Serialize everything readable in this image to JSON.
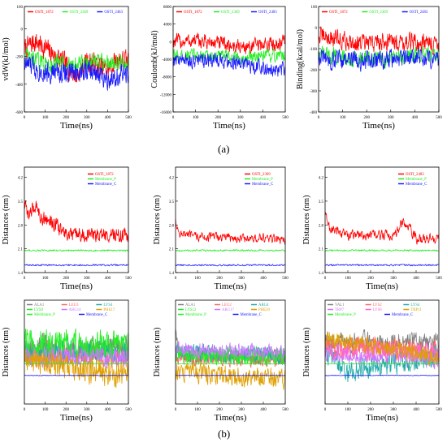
{
  "captions": {
    "a": "(a)",
    "b": "(b)"
  },
  "colors": {
    "red": "#ff0000",
    "green": "#22ee22",
    "blue": "#1a1aff",
    "gray": "#7f7f7f",
    "orange": "#e0a000",
    "violet": "#cc77ff",
    "lightred": "#ff6666",
    "teal": "#22aaaa",
    "pink": "#ff66cc"
  },
  "chart_data": [
    {
      "type": "line",
      "id": "a1",
      "ylabel": "vdW(kJ/mol)",
      "xlabel": "Time(ns)",
      "xlim": [
        0,
        500
      ],
      "ylim": [
        -600,
        160
      ],
      "xticks": [
        "0",
        "100",
        "200",
        "300",
        "400",
        "500"
      ],
      "yticks": [
        "-600",
        "-400",
        "-200",
        "0",
        "160"
      ],
      "legend": [
        "OSTI_1872",
        "OSTI_2369",
        "OSTI_2483"
      ],
      "series": [
        {
          "name": "OSTI_1872",
          "color": "red",
          "mean": -220,
          "noise": 70,
          "x": [
            0,
            50,
            100,
            200,
            250,
            300,
            400,
            450,
            500
          ],
          "y": [
            -150,
            -90,
            -140,
            -260,
            -340,
            -230,
            -300,
            -220,
            -240
          ]
        },
        {
          "name": "OSTI_2369",
          "color": "green",
          "mean": -240,
          "noise": 55,
          "x": [
            0,
            100,
            200,
            300,
            400,
            500
          ],
          "y": [
            -200,
            -250,
            -260,
            -250,
            -240,
            -250
          ]
        },
        {
          "name": "OSTI_2483",
          "color": "blue",
          "mean": -310,
          "noise": 70,
          "x": [
            0,
            100,
            200,
            300,
            400,
            500
          ],
          "y": [
            -250,
            -310,
            -320,
            -300,
            -350,
            -330
          ]
        }
      ]
    },
    {
      "type": "line",
      "id": "a2",
      "ylabel": "Coulomb(kJ/mol)",
      "xlabel": "Time(ns)",
      "xlim": [
        0,
        500
      ],
      "ylim": [
        -16000,
        8000
      ],
      "xticks": [
        "0",
        "100",
        "200",
        "300",
        "400",
        "500"
      ],
      "yticks": [
        "-16000",
        "-12000",
        "-8000",
        "-4000",
        "0",
        "4000",
        "8000"
      ],
      "legend": [
        "OSTI_1872",
        "OSTI_2369",
        "OSTI_2483"
      ],
      "series": [
        {
          "name": "OSTI_1872",
          "color": "red",
          "mean": 0,
          "noise": 1500,
          "x": [
            0,
            100,
            200,
            300,
            400,
            500
          ],
          "y": [
            0,
            200,
            -400,
            -1200,
            -800,
            0
          ]
        },
        {
          "name": "OSTI_2369",
          "color": "green",
          "mean": -3200,
          "noise": 1300,
          "x": [
            0,
            100,
            200,
            300,
            400,
            500
          ],
          "y": [
            -3500,
            -3000,
            -3200,
            -3800,
            -3500,
            -3000
          ]
        },
        {
          "name": "OSTI_2483",
          "color": "blue",
          "mean": -4500,
          "noise": 1500,
          "x": [
            0,
            100,
            200,
            300,
            400,
            500
          ],
          "y": [
            -4000,
            -4500,
            -4200,
            -5000,
            -6000,
            -6500
          ]
        }
      ]
    },
    {
      "type": "line",
      "id": "a3",
      "ylabel": "Binding(kcal/mol)",
      "xlabel": "Time(ns)",
      "xlim": [
        0,
        500
      ],
      "ylim": [
        -400,
        100
      ],
      "xticks": [
        "0",
        "100",
        "200",
        "300",
        "400",
        "500"
      ],
      "yticks": [
        "-400",
        "-300",
        "-200",
        "-100",
        "0",
        "100"
      ],
      "legend": [
        "OSTI_1872",
        "OSTI_2369",
        "OSTI_2483"
      ],
      "series": [
        {
          "name": "OSTI_1872",
          "color": "red",
          "mean": -60,
          "noise": 40,
          "x": [
            0,
            100,
            200,
            300,
            400,
            500
          ],
          "y": [
            -40,
            -60,
            -80,
            -60,
            -70,
            -80
          ]
        },
        {
          "name": "OSTI_2369",
          "color": "green",
          "mean": -140,
          "noise": 35,
          "x": [
            0,
            100,
            200,
            300,
            400,
            500
          ],
          "y": [
            -120,
            -140,
            -150,
            -150,
            -130,
            -130
          ]
        },
        {
          "name": "OSTI_2483",
          "color": "blue",
          "mean": -150,
          "noise": 40,
          "x": [
            0,
            100,
            200,
            300,
            400,
            500
          ],
          "y": [
            -140,
            -160,
            -160,
            -150,
            -140,
            -150
          ]
        }
      ]
    },
    {
      "type": "line",
      "id": "b1",
      "ylabel": "Distances (nm)",
      "xlabel": "Time(ns)",
      "xlim": [
        0,
        500
      ],
      "ylim": [
        1.4,
        4.5
      ],
      "xticks": [
        "0",
        "100",
        "200",
        "300",
        "400",
        "500"
      ],
      "yticks": [
        "1.4",
        "2.1",
        "2.8",
        "3.5",
        "4.2"
      ],
      "legend": [
        "OSTI_1872",
        "Membrane_P",
        "Membrane_C"
      ],
      "series": [
        {
          "name": "OSTI_1872",
          "color": "red",
          "mean": 2.7,
          "noise": 0.18,
          "x": [
            0,
            20,
            60,
            80,
            100,
            150,
            200,
            300,
            400,
            500
          ],
          "y": [
            3.4,
            3.1,
            3.4,
            3.0,
            3.0,
            2.8,
            2.5,
            2.5,
            2.5,
            2.5
          ]
        },
        {
          "name": "Membrane_P",
          "color": "green",
          "mean": 2.05,
          "noise": 0.02,
          "x": [
            0,
            500
          ],
          "y": [
            2.05,
            2.05
          ]
        },
        {
          "name": "Membrane_C",
          "color": "blue",
          "mean": 1.6,
          "noise": 0.02,
          "x": [
            0,
            500
          ],
          "y": [
            1.62,
            1.62
          ]
        }
      ]
    },
    {
      "type": "line",
      "id": "b2",
      "ylabel": "Distances (nm)",
      "xlabel": "Time(ns)",
      "xlim": [
        0,
        500
      ],
      "ylim": [
        1.4,
        4.5
      ],
      "xticks": [
        "0",
        "100",
        "200",
        "300",
        "400",
        "500"
      ],
      "yticks": [
        "1.4",
        "2.1",
        "2.8",
        "3.5",
        "4.2"
      ],
      "legend": [
        "OSTI_2369",
        "Membrane_P",
        "Membrane_C"
      ],
      "series": [
        {
          "name": "OSTI_2369",
          "color": "red",
          "mean": 2.4,
          "noise": 0.12,
          "x": [
            0,
            10,
            50,
            100,
            200,
            300,
            400,
            500
          ],
          "y": [
            3.0,
            2.6,
            2.5,
            2.45,
            2.45,
            2.4,
            2.4,
            2.35
          ]
        },
        {
          "name": "Membrane_P",
          "color": "green",
          "mean": 2.05,
          "noise": 0.02,
          "x": [
            0,
            500
          ],
          "y": [
            2.05,
            2.05
          ]
        },
        {
          "name": "Membrane_C",
          "color": "blue",
          "mean": 1.6,
          "noise": 0.02,
          "x": [
            0,
            500
          ],
          "y": [
            1.62,
            1.62
          ]
        }
      ]
    },
    {
      "type": "line",
      "id": "b3",
      "ylabel": "Distances (nm)",
      "xlabel": "Time(ns)",
      "xlim": [
        0,
        500
      ],
      "ylim": [
        1.4,
        4.5
      ],
      "xticks": [
        "0",
        "100",
        "200",
        "300",
        "400",
        "500"
      ],
      "yticks": [
        "1.4",
        "2.1",
        "2.8",
        "3.5",
        "4.2"
      ],
      "legend": [
        "OSTI_2483",
        "Membrane_P",
        "Membrane_C"
      ],
      "series": [
        {
          "name": "OSTI_2483",
          "color": "red",
          "mean": 2.5,
          "noise": 0.14,
          "x": [
            0,
            20,
            100,
            200,
            300,
            350,
            400,
            500
          ],
          "y": [
            3.1,
            2.7,
            2.5,
            2.5,
            2.5,
            2.9,
            2.4,
            2.4
          ]
        },
        {
          "name": "Membrane_P",
          "color": "green",
          "mean": 2.05,
          "noise": 0.02,
          "x": [
            0,
            500
          ],
          "y": [
            2.05,
            2.05
          ]
        },
        {
          "name": "Membrane_C",
          "color": "blue",
          "mean": 1.6,
          "noise": 0.02,
          "x": [
            0,
            500
          ],
          "y": [
            1.62,
            1.62
          ]
        }
      ]
    },
    {
      "type": "line",
      "id": "c1",
      "ylabel": "Distances (nm)",
      "xlabel": "Time(ns)",
      "xlim": [
        0,
        500
      ],
      "ylim": [
        0.5,
        4.5
      ],
      "xticks": [
        "0",
        "100",
        "200",
        "300",
        "400",
        "500"
      ],
      "yticks": [],
      "legend": [
        "ALA1",
        "LEU3",
        "LYS4",
        "LYS9",
        "ARG14",
        "PHE17",
        "Membrane_P",
        "Membrane_C"
      ],
      "series": [
        {
          "name": "ALA1",
          "color": "gray",
          "mean": 2.6,
          "noise": 0.45,
          "x": [
            0,
            500
          ],
          "y": [
            2.6,
            2.6
          ]
        },
        {
          "name": "LEU3",
          "color": "lightred",
          "mean": 2.4,
          "noise": 0.4,
          "x": [
            0,
            500
          ],
          "y": [
            2.4,
            2.4
          ]
        },
        {
          "name": "LYS4",
          "color": "teal",
          "mean": 2.5,
          "noise": 0.4,
          "x": [
            0,
            500
          ],
          "y": [
            2.5,
            2.5
          ]
        },
        {
          "name": "LYS9",
          "color": "green",
          "mean": 2.7,
          "noise": 0.5,
          "x": [
            0,
            500
          ],
          "y": [
            2.8,
            2.7
          ]
        },
        {
          "name": "ARG14",
          "color": "violet",
          "mean": 2.3,
          "noise": 0.35,
          "x": [
            0,
            500
          ],
          "y": [
            2.3,
            2.3
          ]
        },
        {
          "name": "PHE17",
          "color": "orange",
          "mean": 1.6,
          "noise": 0.45,
          "x": [
            0,
            500
          ],
          "y": [
            2.2,
            1.6
          ]
        },
        {
          "name": "Membrane_P",
          "color": "green",
          "mean": 2.05,
          "noise": 0.01,
          "x": [
            0,
            500
          ],
          "y": [
            2.05,
            2.05
          ]
        },
        {
          "name": "Membrane_C",
          "color": "blue",
          "mean": 1.6,
          "noise": 0.01,
          "x": [
            0,
            500
          ],
          "y": [
            1.6,
            1.6
          ]
        }
      ]
    },
    {
      "type": "line",
      "id": "c2",
      "ylabel": "Distances (nm)",
      "xlabel": "Time(ns)",
      "xlim": [
        0,
        500
      ],
      "ylim": [
        0.5,
        4.5
      ],
      "xticks": [
        "0",
        "100",
        "200",
        "300",
        "400",
        "500"
      ],
      "yticks": [],
      "legend": [
        "ALA1",
        "LEU2",
        "ARG4",
        "LYS12",
        "ARG17",
        "PHE20",
        "Membrane_P",
        "Membrane_C"
      ],
      "series": [
        {
          "name": "ALA1",
          "color": "gray",
          "mean": 2.3,
          "noise": 0.25,
          "x": [
            0,
            20,
            500
          ],
          "y": [
            3.4,
            2.4,
            2.3
          ]
        },
        {
          "name": "LEU2",
          "color": "lightred",
          "mean": 2.2,
          "noise": 0.25,
          "x": [
            0,
            500
          ],
          "y": [
            2.3,
            2.2
          ]
        },
        {
          "name": "ARG4",
          "color": "teal",
          "mean": 2.4,
          "noise": 0.3,
          "x": [
            0,
            500
          ],
          "y": [
            2.5,
            2.4
          ]
        },
        {
          "name": "LYS12",
          "color": "green",
          "mean": 2.3,
          "noise": 0.3,
          "x": [
            0,
            500
          ],
          "y": [
            2.4,
            2.3
          ]
        },
        {
          "name": "ARG17",
          "color": "violet",
          "mean": 2.5,
          "noise": 0.25,
          "x": [
            0,
            500
          ],
          "y": [
            2.6,
            2.5
          ]
        },
        {
          "name": "PHE20",
          "color": "orange",
          "mean": 1.6,
          "noise": 0.35,
          "x": [
            0,
            500
          ],
          "y": [
            1.8,
            1.4
          ]
        },
        {
          "name": "Membrane_P",
          "color": "green",
          "mean": 2.05,
          "noise": 0.01,
          "x": [
            0,
            500
          ],
          "y": [
            2.05,
            2.05
          ]
        },
        {
          "name": "Membrane_C",
          "color": "blue",
          "mean": 1.6,
          "noise": 0.01,
          "x": [
            0,
            500
          ],
          "y": [
            1.6,
            1.6
          ]
        }
      ]
    },
    {
      "type": "line",
      "id": "c3",
      "ylabel": "Distances (nm)",
      "xlabel": "Time(ns)",
      "xlim": [
        0,
        500
      ],
      "ylim": [
        0.5,
        4.5
      ],
      "xticks": [
        "0",
        "100",
        "200",
        "300",
        "400",
        "500"
      ],
      "yticks": [],
      "legend": [
        "VAL1",
        "LYS2",
        "LYS4",
        "TRP7",
        "LYS8",
        "TRP11",
        "Membrane_P",
        "Membrane_C"
      ],
      "series": [
        {
          "name": "VAL1",
          "color": "gray",
          "mean": 2.8,
          "noise": 0.35,
          "x": [
            0,
            500
          ],
          "y": [
            2.9,
            2.8
          ]
        },
        {
          "name": "LYS2",
          "color": "lightred",
          "mean": 2.6,
          "noise": 0.35,
          "x": [
            0,
            500
          ],
          "y": [
            2.7,
            2.6
          ]
        },
        {
          "name": "LYS4",
          "color": "teal",
          "mean": 2.4,
          "noise": 0.35,
          "x": [
            0,
            100,
            500
          ],
          "y": [
            2.5,
            1.7,
            2.4
          ]
        },
        {
          "name": "TRP7",
          "color": "violet",
          "mean": 2.2,
          "noise": 0.3,
          "x": [
            0,
            500
          ],
          "y": [
            2.4,
            2.2
          ]
        },
        {
          "name": "LYS8",
          "color": "pink",
          "mean": 2.5,
          "noise": 0.3,
          "x": [
            0,
            500
          ],
          "y": [
            2.6,
            2.5
          ]
        },
        {
          "name": "TRP11",
          "color": "orange",
          "mean": 2.3,
          "noise": 0.3,
          "x": [
            0,
            500
          ],
          "y": [
            3.0,
            2.3
          ]
        },
        {
          "name": "Membrane_P",
          "color": "green",
          "mean": 2.05,
          "noise": 0.01,
          "x": [
            0,
            500
          ],
          "y": [
            2.05,
            2.05
          ]
        },
        {
          "name": "Membrane_C",
          "color": "blue",
          "mean": 1.6,
          "noise": 0.01,
          "x": [
            0,
            500
          ],
          "y": [
            1.6,
            1.6
          ]
        }
      ]
    }
  ]
}
